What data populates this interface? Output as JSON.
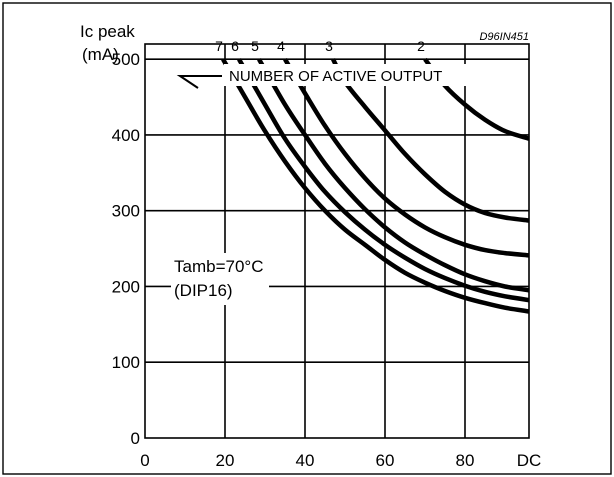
{
  "chart_data": {
    "type": "line",
    "code": "D96IN451",
    "ylabel_line1": "Ic peak",
    "ylabel_line2": "(mA)",
    "xlabel": "",
    "xlim": [
      0,
      96
    ],
    "ylim": [
      0,
      520
    ],
    "x_ticks": [
      {
        "value": 0,
        "label": "0"
      },
      {
        "value": 20,
        "label": "20"
      },
      {
        "value": 40,
        "label": "40"
      },
      {
        "value": 60,
        "label": "60"
      },
      {
        "value": 80,
        "label": "80"
      },
      {
        "value": 96,
        "label": "DC"
      }
    ],
    "y_ticks": [
      {
        "value": 0,
        "label": "0"
      },
      {
        "value": 100,
        "label": "100"
      },
      {
        "value": 200,
        "label": "200"
      },
      {
        "value": 300,
        "label": "300"
      },
      {
        "value": 400,
        "label": "400"
      },
      {
        "value": 500,
        "label": "500"
      }
    ],
    "grid": true,
    "annotation_legend": "NUMBER OF ACTIVE OUTPUT",
    "annotation_conditions_line1": "Tamb=70°C",
    "annotation_conditions_line2": "(DIP16)",
    "series": [
      {
        "name": "7",
        "x": [
          19.5,
          25,
          30,
          35,
          40,
          45,
          50,
          55,
          60,
          65,
          70,
          75,
          80,
          85,
          90,
          96
        ],
        "y": [
          500,
          450,
          405,
          365,
          330,
          300,
          275,
          255,
          235,
          218,
          205,
          194,
          185,
          178,
          172,
          167
        ]
      },
      {
        "name": "6",
        "x": [
          23.5,
          30,
          35,
          40,
          45,
          50,
          55,
          60,
          65,
          70,
          75,
          80,
          85,
          90,
          96
        ],
        "y": [
          500,
          440,
          395,
          358,
          325,
          298,
          275,
          255,
          238,
          223,
          211,
          201,
          193,
          187,
          182
        ]
      },
      {
        "name": "5",
        "x": [
          28.5,
          35,
          40,
          45,
          50,
          55,
          60,
          65,
          70,
          75,
          80,
          85,
          90,
          96
        ],
        "y": [
          500,
          440,
          400,
          362,
          330,
          302,
          278,
          258,
          242,
          228,
          216,
          207,
          200,
          195
        ]
      },
      {
        "name": "4",
        "x": [
          35,
          40,
          45,
          50,
          55,
          60,
          65,
          70,
          75,
          80,
          85,
          90,
          96
        ],
        "y": [
          500,
          455,
          412,
          375,
          343,
          316,
          295,
          278,
          265,
          255,
          248,
          244,
          241
        ]
      },
      {
        "name": "3",
        "x": [
          47,
          50,
          55,
          60,
          65,
          70,
          75,
          80,
          85,
          90,
          96
        ],
        "y": [
          500,
          470,
          437,
          406,
          375,
          348,
          325,
          308,
          297,
          291,
          287
        ]
      },
      {
        "name": "2",
        "x": [
          70,
          75,
          80,
          85,
          90,
          96
        ],
        "y": [
          500,
          465,
          440,
          420,
          405,
          395
        ]
      }
    ]
  }
}
